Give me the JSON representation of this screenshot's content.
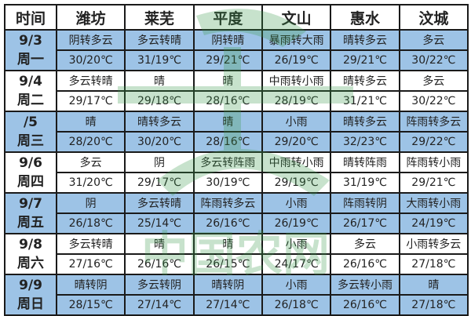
{
  "headers": [
    "时间",
    "潍坊",
    "莱芜",
    "平度",
    "文山",
    "惠水",
    "汶城"
  ],
  "days": [
    {
      "date": "9/3",
      "weekday": "周一",
      "weather": [
        "阴转多云",
        "多云转晴",
        "阴转晴",
        "暴雨转大雨",
        "晴转多云",
        "多云"
      ],
      "temps": [
        "30/20℃",
        "31/19℃",
        "29/21℃",
        "26/19℃",
        "29/21℃",
        "30/22℃"
      ]
    },
    {
      "date": "9/4",
      "weekday": "周二",
      "weather": [
        "多云转晴",
        "晴",
        "晴",
        "中雨转小雨",
        "晴转多云",
        "多云"
      ],
      "temps": [
        "29/17℃",
        "29/18℃",
        "28/16℃",
        "28/19℃",
        "31/21℃",
        "30/22℃"
      ]
    },
    {
      "date": "/5",
      "weekday": "周三",
      "weather": [
        "晴",
        "晴转多云",
        "晴",
        "小雨",
        "晴转多云",
        "阵雨转多云"
      ],
      "temps": [
        "28/20℃",
        "30/20℃",
        "28/16℃",
        "29/20℃",
        "32/23℃",
        "29/22℃"
      ]
    },
    {
      "date": "9/6",
      "weekday": "周四",
      "weather": [
        "多云",
        "阴",
        "多云转阵雨",
        "中雨转小雨",
        "晴转阵雨",
        "阵雨转小雨"
      ],
      "temps": [
        "31/20℃",
        "29/17℃",
        "30/19℃",
        "29/19℃",
        "31/19℃",
        "29/21℃"
      ]
    },
    {
      "date": "9/7",
      "weekday": "周五",
      "weather": [
        "阴",
        "多云转晴",
        "阵雨转多云",
        "小雨",
        "阵雨转阴",
        "大雨转小雨"
      ],
      "temps": [
        "26/18℃",
        "25/14℃",
        "26/16℃",
        "26/19℃",
        "26/17℃",
        "24/19℃"
      ]
    },
    {
      "date": "9/8",
      "weekday": "周六",
      "weather": [
        "多云转晴",
        "晴",
        "晴",
        "小雨",
        "多云",
        "小雨转多云"
      ],
      "temps": [
        "27/16℃",
        "26/16℃",
        "26/15℃",
        "24/17℃",
        "26/16℃",
        "27/18℃"
      ]
    },
    {
      "date": "9/9",
      "weekday": "周日",
      "weather": [
        "晴转阴",
        "多云转阴",
        "晴转阴",
        "小雨",
        "多云转小雨",
        "晴"
      ],
      "temps": [
        "28/15℃",
        "27/14℃",
        "27/14℃",
        "26/18℃",
        "26/16℃",
        "27/18℃"
      ]
    }
  ],
  "colors": {
    "shaded_row": "#9dc3e6",
    "border": "#1a1a1a",
    "watermark": "#3a9a4a"
  },
  "watermark_text": "中国农网"
}
